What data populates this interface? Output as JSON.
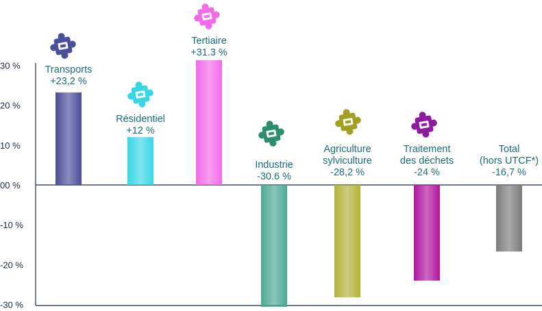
{
  "chart_data": {
    "type": "bar",
    "categories": [
      [
        "Transports"
      ],
      [
        "Résidentiel"
      ],
      [
        "Tertiaire"
      ],
      [
        "Industrie"
      ],
      [
        "Agriculture",
        "sylviculture"
      ],
      [
        "Traitement",
        "des déchets"
      ],
      [
        "Total",
        "(hors UTCF*)"
      ]
    ],
    "value_labels": [
      "+23,2 %",
      "+12 %",
      "+31.3 %",
      "-30.6 %",
      "-28,2 %",
      "-24 %",
      "-16,7 %"
    ],
    "values": [
      23.2,
      12,
      31.3,
      -30.6,
      -28.2,
      -24,
      -16.7
    ],
    "colors": [
      "#4a4f9a",
      "#39d7e6",
      "#f26be7",
      "#4aa993",
      "#b3b33a",
      "#b0169f",
      "#7b7b7b"
    ],
    "icons": [
      "truck-puzzle-icon",
      "buildings-puzzle-icon",
      "euro-puzzle-icon",
      "factory-puzzle-icon",
      "farm-puzzle-icon",
      "recycle-bin-puzzle-icon",
      "none"
    ],
    "icon_colors": [
      "#4a4f9a",
      "#39d7e6",
      "#f26be7",
      "#2d8d6f",
      "#a1a020",
      "#8e1aa0",
      "none"
    ],
    "yticks": [
      "30 %",
      "20 %",
      "10 %",
      "00 %",
      "-10 %",
      "-20 %",
      "-30 %"
    ],
    "ytick_values": [
      30,
      20,
      10,
      0,
      -10,
      -20,
      -30
    ],
    "ylim": [
      -30,
      30
    ],
    "grid": false,
    "legend": "none"
  }
}
